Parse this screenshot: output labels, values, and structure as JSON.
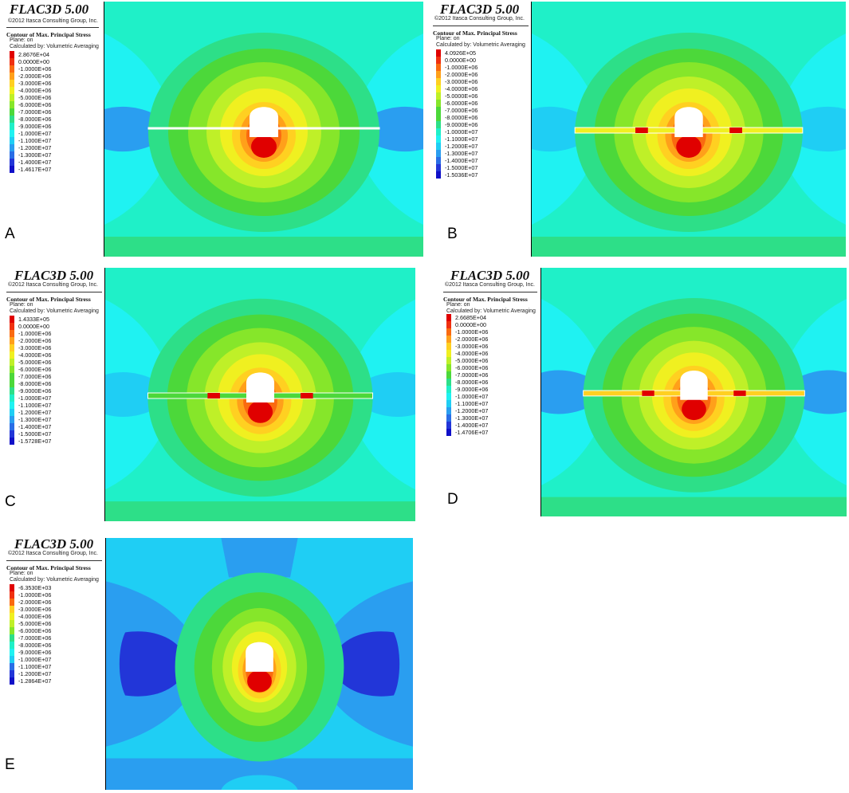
{
  "software": "FLAC3D 5.00",
  "copyright": "©2012 Itasca Consulting Group, Inc.",
  "contour_title": "Contour of Max. Principal Stress",
  "plane": "Plane: on",
  "calculated_by": "Calculated by: Volumetric Averaging",
  "palette": [
    "#e00000",
    "#f03010",
    "#fa6a10",
    "#ffa01a",
    "#ffd021",
    "#f0f020",
    "#bff028",
    "#86e62a",
    "#4cd83a",
    "#2ddf88",
    "#1ff0c8",
    "#1ff2f2",
    "#1fcef4",
    "#2a9ef0",
    "#2a6ee6",
    "#2236d8",
    "#1010c8"
  ],
  "panels": [
    {
      "id": "A",
      "label": "A",
      "levels": [
        "2.8676E+04",
        "0.0000E+00",
        "-1.0000E+06",
        "-2.0000E+06",
        "-3.0000E+06",
        "-4.0000E+06",
        "-5.0000E+06",
        "-6.0000E+06",
        "-7.0000E+06",
        "-8.0000E+06",
        "-9.0000E+06",
        "-1.0000E+07",
        "-1.1000E+07",
        "-1.2000E+07",
        "-1.3000E+07",
        "-1.4000E+07",
        "-1.4617E+07"
      ]
    },
    {
      "id": "B",
      "label": "B",
      "levels": [
        "4.0926E+05",
        "0.0000E+00",
        "-1.0000E+06",
        "-2.0000E+06",
        "-3.0000E+06",
        "-4.0000E+06",
        "-5.0000E+06",
        "-6.0000E+06",
        "-7.0000E+06",
        "-8.0000E+06",
        "-9.0000E+06",
        "-1.0000E+07",
        "-1.1000E+07",
        "-1.2000E+07",
        "-1.3000E+07",
        "-1.4000E+07",
        "-1.5000E+07",
        "-1.5036E+07"
      ]
    },
    {
      "id": "C",
      "label": "C",
      "levels": [
        "1.4333E+05",
        "0.0000E+00",
        "-1.0000E+06",
        "-2.0000E+06",
        "-3.0000E+06",
        "-4.0000E+06",
        "-5.0000E+06",
        "-6.0000E+06",
        "-7.0000E+06",
        "-8.0000E+06",
        "-9.0000E+06",
        "-1.0000E+07",
        "-1.1000E+07",
        "-1.2000E+07",
        "-1.3000E+07",
        "-1.4000E+07",
        "-1.5000E+07",
        "-1.5728E+07"
      ]
    },
    {
      "id": "D",
      "label": "D",
      "levels": [
        "2.6685E+04",
        "0.0000E+00",
        "-1.0000E+06",
        "-2.0000E+06",
        "-3.0000E+06",
        "-4.0000E+06",
        "-5.0000E+06",
        "-6.0000E+06",
        "-7.0000E+06",
        "-8.0000E+06",
        "-9.0000E+06",
        "-1.0000E+07",
        "-1.1000E+07",
        "-1.2000E+07",
        "-1.3000E+07",
        "-1.4000E+07",
        "-1.4706E+07"
      ]
    },
    {
      "id": "E",
      "label": "E",
      "levels": [
        "-6.3530E+03",
        "-1.0000E+06",
        "-2.0000E+06",
        "-3.0000E+06",
        "-4.0000E+06",
        "-5.0000E+06",
        "-6.0000E+06",
        "-7.0000E+06",
        "-8.0000E+06",
        "-9.0000E+06",
        "-1.0000E+07",
        "-1.1000E+07",
        "-1.2000E+07",
        "-1.2864E+07"
      ]
    }
  ]
}
